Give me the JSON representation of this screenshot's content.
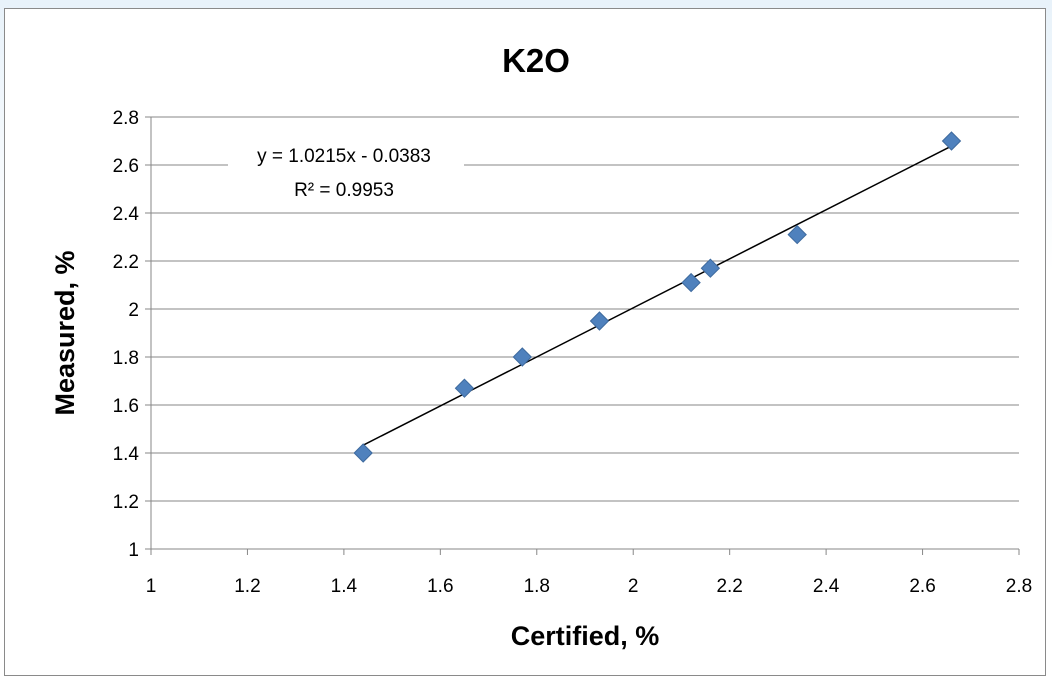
{
  "chart_data": {
    "type": "scatter",
    "title": "K2O",
    "xlabel": "Certified, %",
    "ylabel": "Measured, %",
    "xlim": [
      1,
      2.8
    ],
    "ylim": [
      1,
      2.8
    ],
    "x_ticks": [
      "1",
      "1.2",
      "1.4",
      "1.6",
      "1.8",
      "2",
      "2.2",
      "2.4",
      "2.6",
      "2.8"
    ],
    "y_ticks": [
      "1",
      "1.2",
      "1.4",
      "1.6",
      "1.8",
      "2",
      "2.2",
      "2.4",
      "2.6",
      "2.8"
    ],
    "grid": "horizontal",
    "legend": "none",
    "series": [
      {
        "marker": "diamond",
        "color": "#4f81bd",
        "points": [
          {
            "x": 1.44,
            "y": 1.4
          },
          {
            "x": 1.65,
            "y": 1.67
          },
          {
            "x": 1.77,
            "y": 1.8
          },
          {
            "x": 1.93,
            "y": 1.95
          },
          {
            "x": 2.12,
            "y": 2.11
          },
          {
            "x": 2.16,
            "y": 2.17
          },
          {
            "x": 2.34,
            "y": 2.31
          },
          {
            "x": 2.66,
            "y": 2.7
          }
        ]
      }
    ],
    "trendline": {
      "type": "linear",
      "slope": 1.0215,
      "intercept": -0.0383,
      "x_range": [
        1.44,
        2.66
      ],
      "equation": "y = 1.0215x - 0.0383",
      "r_squared": "R² = 0.9953",
      "color": "#000000"
    }
  }
}
